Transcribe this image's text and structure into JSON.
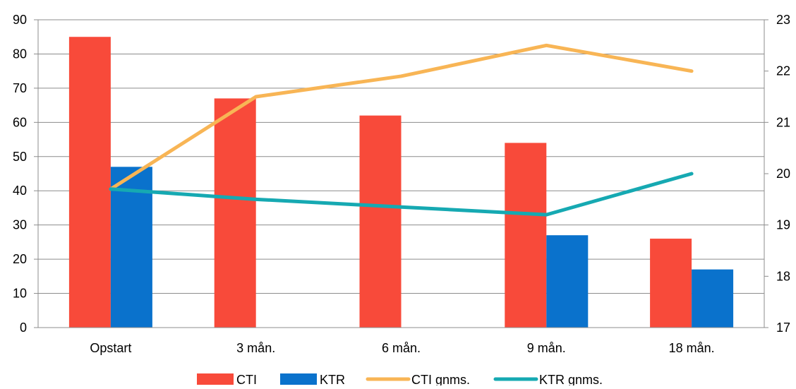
{
  "chart_data": {
    "type": "bar",
    "categories": [
      "Opstart",
      "3 mån.",
      "6 mån.",
      "9 mån.",
      "18 mån."
    ],
    "series": [
      {
        "name": "CTI",
        "type": "bar",
        "axis": "left",
        "color": "#F84A3A",
        "values": [
          85,
          67,
          62,
          54,
          26
        ]
      },
      {
        "name": "KTR",
        "type": "bar",
        "axis": "left",
        "color": "#0A72CC",
        "values": [
          47,
          null,
          null,
          27,
          17
        ]
      },
      {
        "name": "CTI gnms.",
        "type": "line",
        "axis": "right",
        "color": "#F8B555",
        "values": [
          19.7,
          21.5,
          21.9,
          22.5,
          22.0
        ]
      },
      {
        "name": "KTR gnms.",
        "type": "line",
        "axis": "right",
        "color": "#16A9B2",
        "values": [
          19.7,
          19.5,
          19.35,
          19.2,
          20.0
        ]
      }
    ],
    "y_left": {
      "min": 0,
      "max": 90,
      "ticks": [
        "0",
        "10",
        "20",
        "30",
        "40",
        "50",
        "60",
        "70",
        "80",
        "90"
      ]
    },
    "y_right": {
      "min": 17,
      "max": 23,
      "ticks": [
        "17",
        "18",
        "19",
        "20",
        "21",
        "22",
        "23"
      ]
    },
    "grid": true,
    "legend_position": "bottom"
  }
}
